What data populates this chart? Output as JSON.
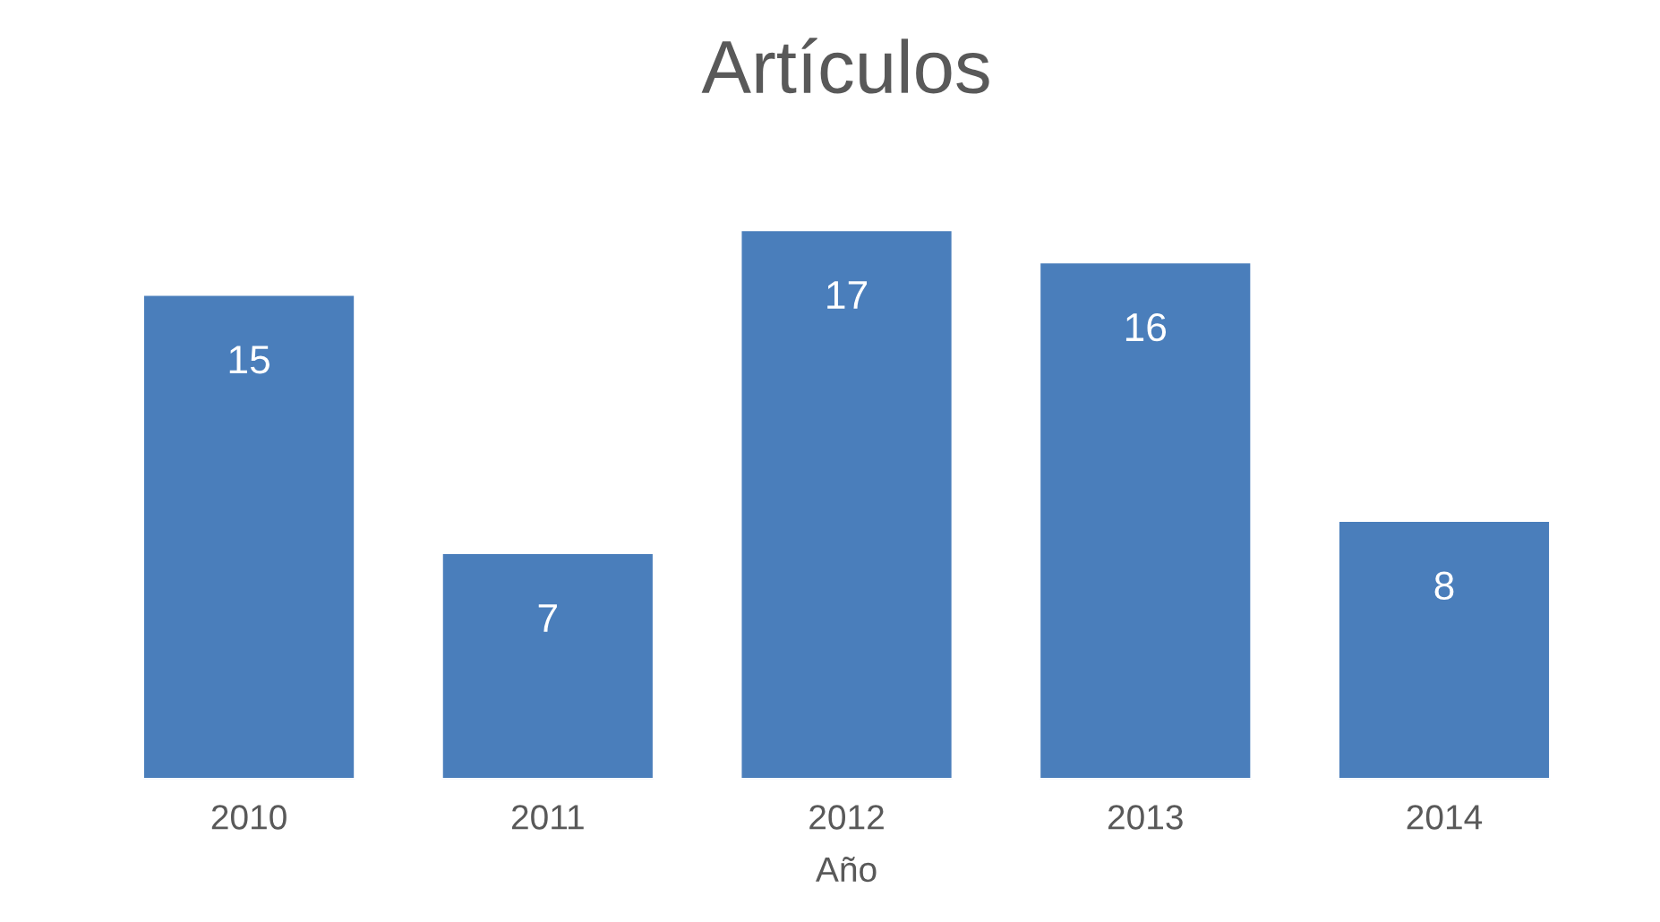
{
  "chart_data": {
    "type": "bar",
    "title": "Artículos",
    "xlabel": "Año",
    "categories": [
      "2010",
      "2011",
      "2012",
      "2013",
      "2014"
    ],
    "values": [
      15,
      7,
      17,
      16,
      8
    ],
    "color": "#4a7ebb",
    "data_labels": true
  }
}
